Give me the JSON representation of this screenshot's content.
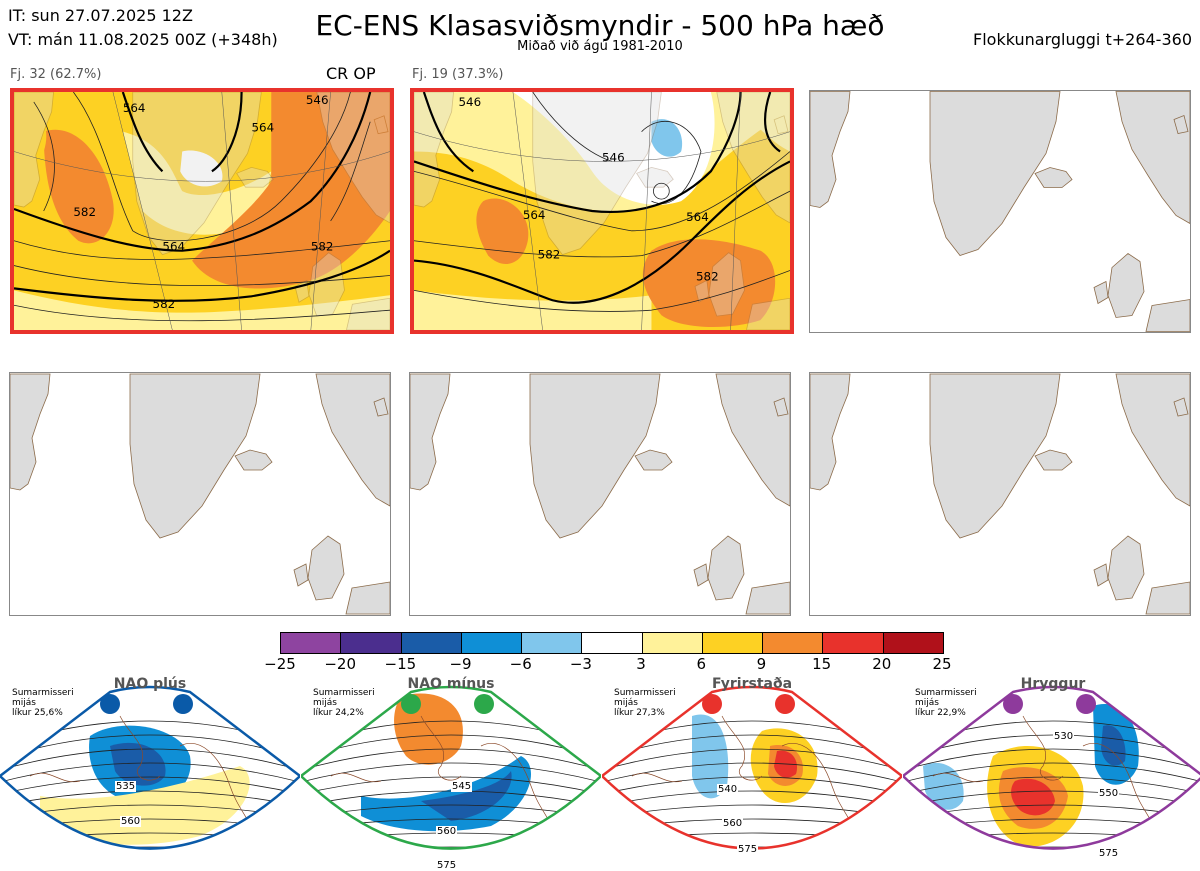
{
  "header": {
    "it": "IT: sun 27.07.2025 12Z",
    "vt": "VT: mán 11.08.2025 00Z  (+348h)",
    "title": "EC-ENS Klasasviðsmyndir - 500 hPa hæð",
    "subtitle": "Miðað við ágú 1981-2010",
    "window": "Flokkunargluggi t+264-360"
  },
  "clusters": [
    {
      "label": "Fj. 32 (62.7%)",
      "tag": "CR OP",
      "contours": [
        "564",
        "582",
        "564",
        "582",
        "546",
        "564",
        "582"
      ]
    },
    {
      "label": "Fj. 19 (37.3%)",
      "tag": "",
      "contours": [
        "546",
        "564",
        "582",
        "564",
        "582",
        "546"
      ]
    }
  ],
  "colorbar": {
    "ticks": [
      "−25",
      "−20",
      "−15",
      "−9",
      "−6",
      "−3",
      "3",
      "6",
      "9",
      "15",
      "20",
      "25"
    ],
    "colors": [
      "#8e44a0",
      "#4b2e8e",
      "#1a5ca8",
      "#0f8fd6",
      "#80c6ec",
      "#ffffff",
      "#fff29a",
      "#fdd123",
      "#f38a2f",
      "#e8322c",
      "#b0111a"
    ]
  },
  "regimes": [
    {
      "name": "NAO plús",
      "season": "Sumarmisseri",
      "dist": "mijás",
      "prob": "líkur 25,6%",
      "color": "#0a5aa8",
      "labels": [
        "535",
        "560"
      ]
    },
    {
      "name": "NAO mínus",
      "season": "Sumarmisseri",
      "dist": "mijás",
      "prob": "líkur 24,2%",
      "color": "#2ca84a",
      "labels": [
        "545",
        "560",
        "575"
      ]
    },
    {
      "name": "Fyrirstaða",
      "season": "Sumarmisseri",
      "dist": "mijás",
      "prob": "líkur 27,3%",
      "color": "#e8322c",
      "labels": [
        "540",
        "560",
        "575"
      ]
    },
    {
      "name": "Hryggur",
      "season": "Sumarmisseri",
      "dist": "mijás",
      "prob": "líkur 22,9%",
      "color": "#8e3a9c",
      "labels": [
        "530",
        "550",
        "575"
      ]
    }
  ]
}
